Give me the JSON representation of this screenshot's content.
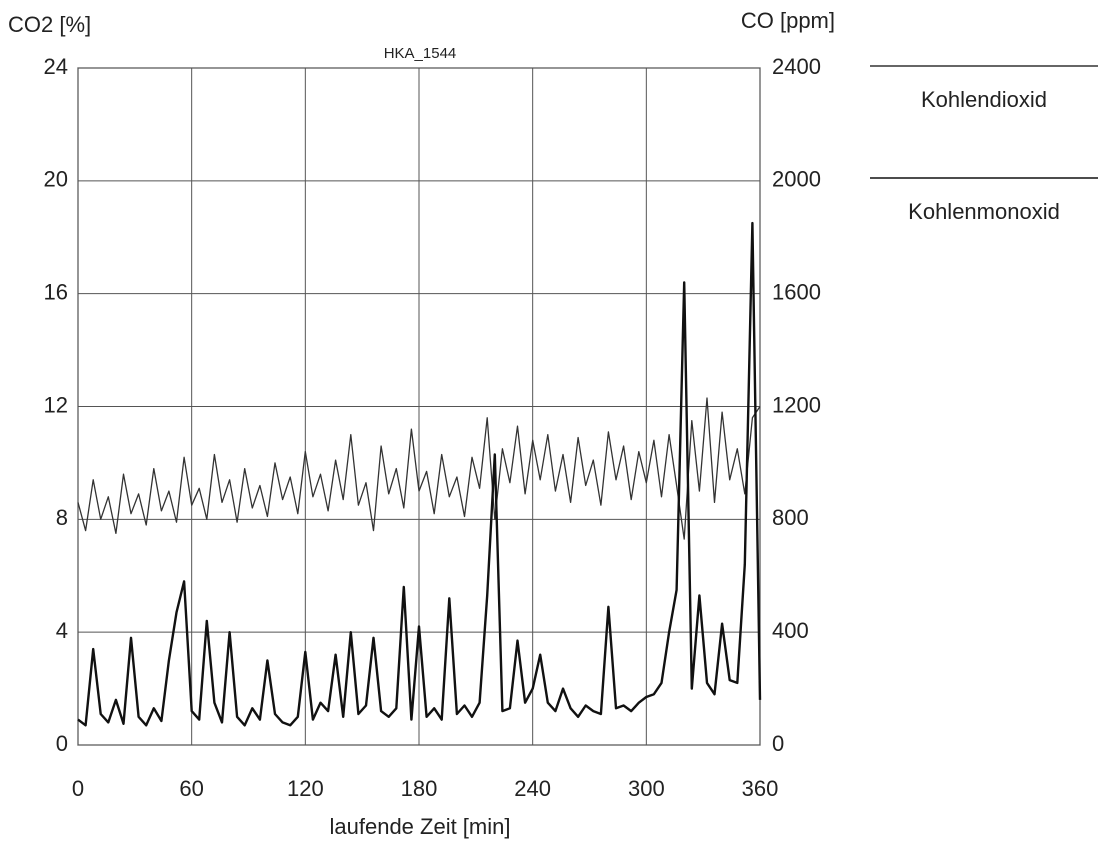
{
  "chart_data": {
    "type": "line",
    "title": "HKA_1544",
    "xlabel": "laufende Zeit [min]",
    "ylabel": "CO2 [%]",
    "y2label": "CO [ppm]",
    "x": [
      0,
      4,
      8,
      12,
      16,
      20,
      24,
      28,
      32,
      36,
      40,
      44,
      48,
      52,
      56,
      60,
      64,
      68,
      72,
      76,
      80,
      84,
      88,
      92,
      96,
      100,
      104,
      108,
      112,
      116,
      120,
      124,
      128,
      132,
      136,
      140,
      144,
      148,
      152,
      156,
      160,
      164,
      168,
      172,
      176,
      180,
      184,
      188,
      192,
      196,
      200,
      204,
      208,
      212,
      216,
      220,
      224,
      228,
      232,
      236,
      240,
      244,
      248,
      252,
      256,
      260,
      264,
      268,
      272,
      276,
      280,
      284,
      288,
      292,
      296,
      300,
      304,
      308,
      312,
      316,
      320,
      324,
      328,
      332,
      336,
      340,
      344,
      348,
      352,
      356,
      360
    ],
    "series": [
      {
        "name": "Kohlendioxid",
        "color": "#333333",
        "width": 1.3,
        "values": [
          8.6,
          7.6,
          9.4,
          8.0,
          8.8,
          7.5,
          9.6,
          8.2,
          8.9,
          7.8,
          9.8,
          8.3,
          9.0,
          7.9,
          10.2,
          8.5,
          9.1,
          8.0,
          10.3,
          8.6,
          9.4,
          7.9,
          9.8,
          8.4,
          9.2,
          8.1,
          10.0,
          8.7,
          9.5,
          8.2,
          10.4,
          8.8,
          9.6,
          8.3,
          10.1,
          8.7,
          11.0,
          8.5,
          9.3,
          7.6,
          10.6,
          8.9,
          9.8,
          8.4,
          11.2,
          9.0,
          9.7,
          8.2,
          10.3,
          8.8,
          9.5,
          8.1,
          10.2,
          9.1,
          11.6,
          8.0,
          10.5,
          9.3,
          11.3,
          8.9,
          10.8,
          9.4,
          11.0,
          9.0,
          10.3,
          8.6,
          10.9,
          9.2,
          10.1,
          8.5,
          11.1,
          9.4,
          10.6,
          8.7,
          10.4,
          9.3,
          10.8,
          8.8,
          11.0,
          9.2,
          7.3,
          11.5,
          9.0,
          12.3,
          8.6,
          11.8,
          9.4,
          10.5,
          8.9,
          11.6,
          12.0
        ]
      },
      {
        "name": "Kohlenmonoxid",
        "color": "#111111",
        "width": 2.4,
        "axis": "y2",
        "values": [
          90,
          70,
          340,
          110,
          80,
          160,
          75,
          380,
          100,
          70,
          130,
          85,
          300,
          470,
          580,
          120,
          90,
          440,
          150,
          80,
          400,
          100,
          70,
          130,
          90,
          300,
          110,
          80,
          70,
          100,
          330,
          90,
          150,
          120,
          320,
          100,
          400,
          110,
          140,
          380,
          120,
          100,
          130,
          560,
          90,
          420,
          100,
          130,
          90,
          520,
          110,
          140,
          100,
          150,
          530,
          1030,
          120,
          130,
          370,
          150,
          200,
          320,
          150,
          120,
          200,
          130,
          100,
          140,
          120,
          110,
          490,
          130,
          140,
          120,
          150,
          170,
          180,
          220,
          400,
          550,
          1640,
          200,
          530,
          220,
          180,
          430,
          230,
          220,
          640,
          1850,
          160
        ]
      }
    ],
    "xlim": [
      0,
      360
    ],
    "xticks": [
      0,
      60,
      120,
      180,
      240,
      300,
      360
    ],
    "ylim": [
      0,
      24
    ],
    "yticks": [
      0,
      4,
      8,
      12,
      16,
      20,
      24
    ],
    "y2lim": [
      0,
      2400
    ],
    "y2ticks": [
      0,
      400,
      800,
      1200,
      1600,
      2000,
      2400
    ],
    "grid": true
  }
}
